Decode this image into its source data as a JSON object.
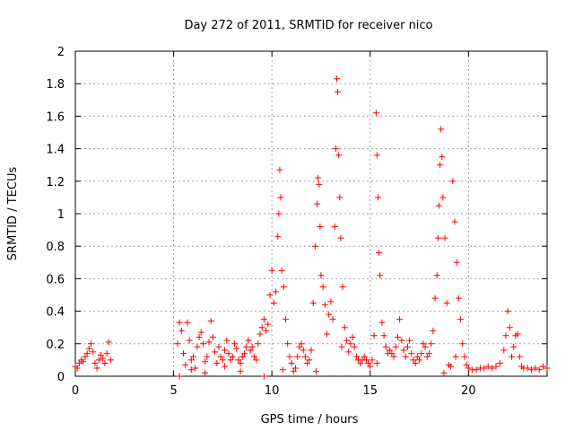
{
  "chart_data": {
    "type": "scatter",
    "title": "Day 272 of 2011, SRMTID for receiver nico",
    "xlabel": "GPS time / hours",
    "ylabel": "SRMTID / TECUs",
    "xlim": [
      0,
      24
    ],
    "ylim": [
      0,
      2
    ],
    "x_ticks": [
      0,
      5,
      10,
      15,
      20
    ],
    "x_tick_labels": [
      "0",
      "5",
      "10",
      "15",
      "20"
    ],
    "y_ticks": [
      0,
      0.2,
      0.4,
      0.6,
      0.8,
      1,
      1.2,
      1.4,
      1.6,
      1.8,
      2
    ],
    "y_tick_labels": [
      "0",
      "0.2",
      "0.4",
      "0.6",
      "0.8",
      "1",
      "1.2",
      "1.4",
      "1.6",
      "1.8",
      "2"
    ],
    "grid": true,
    "marker": "+",
    "color": "#ff0000",
    "series": [
      {
        "name": "SRMTID",
        "x": [
          0.0,
          0.1,
          0.2,
          0.3,
          0.4,
          0.5,
          0.6,
          0.7,
          0.8,
          0.9,
          1.0,
          1.1,
          1.2,
          1.3,
          1.4,
          1.5,
          1.6,
          1.7,
          1.8,
          5.2,
          5.3,
          5.4,
          5.5,
          5.6,
          5.7,
          5.8,
          5.9,
          6.0,
          6.1,
          6.2,
          6.3,
          6.4,
          6.5,
          6.6,
          6.7,
          6.8,
          6.9,
          7.0,
          7.1,
          7.2,
          7.3,
          7.4,
          7.5,
          7.6,
          7.7,
          7.8,
          7.9,
          8.0,
          8.1,
          8.2,
          8.3,
          8.4,
          8.5,
          8.6,
          8.7,
          8.8,
          8.9,
          9.0,
          9.1,
          9.2,
          9.3,
          9.4,
          9.5,
          9.6,
          9.7,
          9.8,
          9.9,
          10.0,
          10.1,
          10.2,
          10.3,
          10.35,
          10.4,
          10.45,
          10.5,
          10.6,
          10.7,
          10.8,
          10.9,
          11.0,
          11.1,
          11.2,
          11.3,
          11.4,
          11.5,
          11.6,
          11.7,
          11.8,
          11.9,
          12.0,
          12.1,
          12.2,
          12.3,
          12.35,
          12.4,
          12.45,
          12.5,
          12.6,
          12.7,
          12.8,
          12.9,
          13.0,
          13.1,
          13.2,
          13.25,
          13.3,
          13.35,
          13.4,
          13.45,
          13.5,
          13.6,
          13.7,
          13.8,
          13.9,
          14.0,
          14.1,
          14.2,
          14.3,
          14.4,
          14.5,
          14.6,
          14.7,
          14.8,
          14.9,
          15.0,
          15.1,
          15.2,
          15.3,
          15.35,
          15.4,
          15.45,
          15.5,
          15.6,
          15.7,
          15.8,
          15.9,
          16.0,
          16.1,
          16.2,
          16.3,
          16.4,
          16.5,
          16.6,
          16.7,
          16.8,
          16.9,
          17.0,
          17.1,
          17.2,
          17.3,
          17.4,
          17.5,
          17.6,
          17.7,
          17.8,
          17.9,
          18.0,
          18.1,
          18.2,
          18.3,
          18.4,
          18.45,
          18.5,
          18.55,
          18.6,
          18.65,
          18.7,
          18.8,
          18.9,
          19.0,
          19.1,
          19.2,
          19.3,
          19.4,
          19.5,
          19.6,
          19.7,
          19.8,
          19.9,
          20.0,
          20.2,
          20.4,
          20.6,
          20.8,
          21.0,
          21.2,
          21.4,
          21.6,
          21.8,
          21.9,
          22.0,
          22.1,
          22.2,
          22.3,
          22.4,
          22.5,
          22.6,
          22.7,
          22.8,
          23.0,
          23.2,
          23.4,
          23.6,
          23.8,
          24.0,
          5.3,
          5.9,
          6.6,
          7.6,
          8.4,
          9.6,
          10.55,
          12.25,
          13.55,
          15.35,
          18.75,
          19.35
        ],
        "y": [
          0.06,
          0.05,
          0.08,
          0.1,
          0.09,
          0.12,
          0.14,
          0.17,
          0.2,
          0.15,
          0.08,
          0.05,
          0.1,
          0.13,
          0.11,
          0.08,
          0.14,
          0.21,
          0.1,
          0.2,
          0.33,
          0.28,
          0.14,
          0.07,
          0.33,
          0.22,
          0.1,
          0.12,
          0.05,
          0.18,
          0.24,
          0.27,
          0.2,
          0.09,
          0.12,
          0.21,
          0.34,
          0.24,
          0.15,
          0.08,
          0.18,
          0.12,
          0.1,
          0.16,
          0.22,
          0.14,
          0.1,
          0.12,
          0.2,
          0.17,
          0.1,
          0.08,
          0.12,
          0.14,
          0.18,
          0.22,
          0.16,
          0.18,
          0.12,
          0.1,
          0.2,
          0.26,
          0.3,
          0.35,
          0.28,
          0.32,
          0.5,
          0.65,
          0.45,
          0.52,
          0.86,
          1.0,
          1.27,
          1.1,
          0.65,
          0.55,
          0.35,
          0.2,
          0.12,
          0.08,
          0.03,
          0.05,
          0.12,
          0.18,
          0.2,
          0.16,
          0.12,
          0.08,
          0.1,
          0.16,
          0.45,
          0.8,
          1.06,
          1.22,
          1.18,
          0.92,
          0.62,
          0.55,
          0.44,
          0.26,
          0.38,
          0.46,
          0.35,
          0.92,
          1.4,
          1.83,
          1.75,
          1.36,
          1.1,
          0.85,
          0.55,
          0.3,
          0.22,
          0.15,
          0.2,
          0.24,
          0.18,
          0.12,
          0.1,
          0.08,
          0.1,
          0.12,
          0.1,
          0.08,
          0.06,
          0.1,
          0.25,
          1.62,
          1.36,
          1.1,
          0.76,
          0.62,
          0.33,
          0.25,
          0.18,
          0.14,
          0.16,
          0.14,
          0.12,
          0.18,
          0.24,
          0.35,
          0.22,
          0.16,
          0.12,
          0.18,
          0.22,
          0.14,
          0.1,
          0.08,
          0.12,
          0.1,
          0.14,
          0.2,
          0.18,
          0.12,
          0.14,
          0.2,
          0.28,
          0.48,
          0.62,
          0.85,
          1.05,
          1.3,
          1.52,
          1.35,
          1.1,
          0.85,
          0.45,
          0.07,
          0.06,
          1.2,
          0.95,
          0.7,
          0.48,
          0.35,
          0.2,
          0.12,
          0.07,
          0.05,
          0.04,
          0.04,
          0.05,
          0.05,
          0.06,
          0.05,
          0.06,
          0.08,
          0.16,
          0.25,
          0.4,
          0.3,
          0.12,
          0.18,
          0.25,
          0.26,
          0.12,
          0.06,
          0.05,
          0.05,
          0.04,
          0.05,
          0.04,
          0.06,
          0.05,
          0.0,
          0.04,
          0.02,
          0.06,
          0.03,
          0.0,
          0.04,
          0.03,
          0.18,
          0.08,
          0.02,
          0.12
        ]
      }
    ]
  }
}
